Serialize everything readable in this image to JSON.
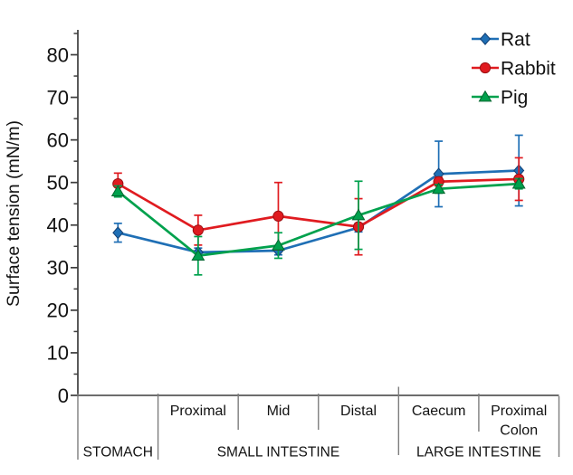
{
  "chart_data": {
    "type": "line",
    "title": "",
    "ylabel": "Surface tension (mN/m)",
    "xlabel": "",
    "ylim": [
      0,
      85
    ],
    "y_major_ticks": [
      0,
      10,
      20,
      30,
      40,
      50,
      60,
      70,
      80
    ],
    "y_minor_tick_step": 5,
    "grid": false,
    "legend_position": "top-right",
    "categories": [
      "Stomach",
      "Small intestine - Proximal",
      "Small intestine - Mid",
      "Small intestine - Distal",
      "Large intestine - Caecum",
      "Large intestine - Proximal Colon"
    ],
    "x_axis": {
      "sub_labels": [
        "",
        "Proximal",
        "Mid",
        "Distal",
        "Caecum",
        "Proximal\nColon"
      ],
      "groups": [
        {
          "label": "STOMACH",
          "start": 0,
          "end": 1
        },
        {
          "label": "SMALL INTESTINE",
          "start": 1,
          "end": 4
        },
        {
          "label": "LARGE INTESTINE",
          "start": 4,
          "end": 6
        }
      ]
    },
    "series": [
      {
        "name": "Rat",
        "marker": "diamond",
        "color": "#1F6FB5",
        "edge_color": "#123F73",
        "values": [
          38.2,
          33.6,
          34.0,
          39.4,
          52.0,
          52.8
        ],
        "errors": [
          2.2,
          1.0,
          1.0,
          1.0,
          7.7,
          8.3
        ]
      },
      {
        "name": "Rabbit",
        "marker": "circle",
        "color": "#E01B20",
        "edge_color": "#9E0F12",
        "values": [
          49.7,
          38.8,
          42.1,
          39.6,
          50.2,
          50.8
        ],
        "errors": [
          2.5,
          3.5,
          7.9,
          6.6,
          1.0,
          5.0
        ]
      },
      {
        "name": "Pig",
        "marker": "triangle",
        "color": "#00A14D",
        "edge_color": "#00662F",
        "values": [
          47.9,
          32.8,
          35.2,
          42.3,
          48.5,
          49.7
        ],
        "errors": [
          1.3,
          4.5,
          3.0,
          8.0,
          1.0,
          1.2
        ]
      }
    ]
  }
}
